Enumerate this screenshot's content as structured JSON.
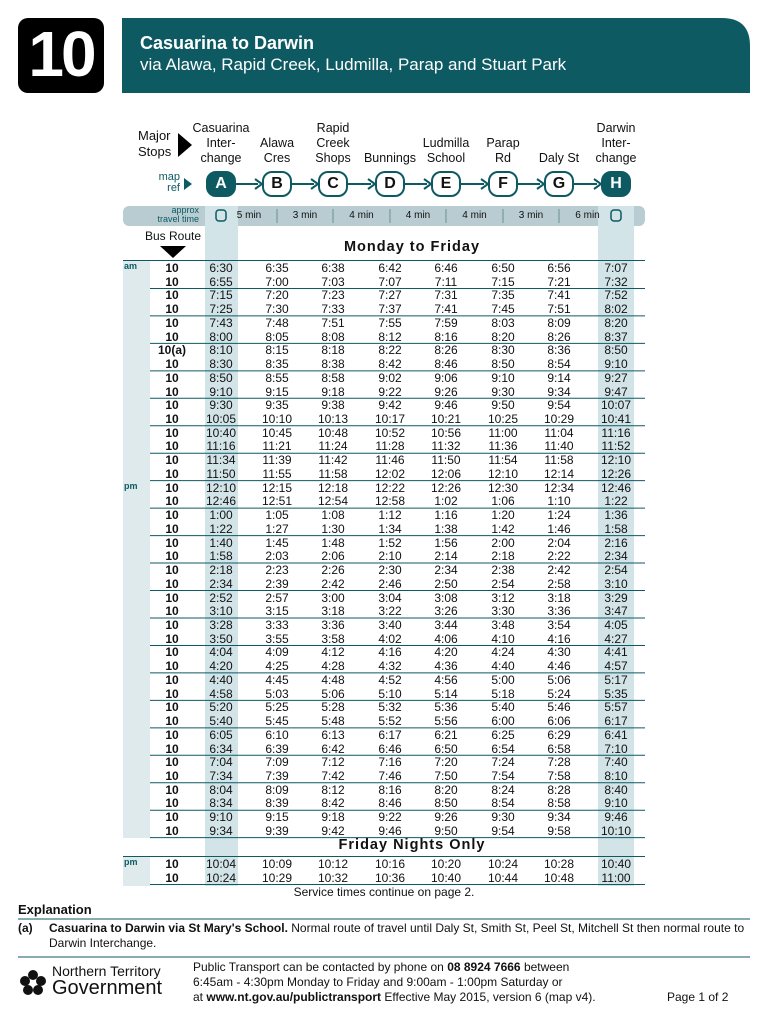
{
  "route_number": "10",
  "header": {
    "title": "Casuarina to Darwin",
    "subtitle": "via Alawa, Rapid Creek, Ludmilla, Parap and Stuart Park"
  },
  "major_stops_label": [
    "Major",
    "Stops"
  ],
  "map_ref_label": [
    "map",
    "ref"
  ],
  "travel_time_label": [
    "approx",
    "travel time"
  ],
  "bus_route_label": "Bus Route",
  "stops": [
    {
      "name": [
        "Casuarina",
        "Inter-",
        "change"
      ],
      "ref": "A"
    },
    {
      "name": [
        "Alawa",
        "Cres"
      ],
      "ref": "B"
    },
    {
      "name": [
        "Rapid",
        "Creek",
        "Shops"
      ],
      "ref": "C"
    },
    {
      "name": [
        "Bunnings"
      ],
      "ref": "D"
    },
    {
      "name": [
        "Ludmilla",
        "School"
      ],
      "ref": "E"
    },
    {
      "name": [
        "Parap",
        "Rd"
      ],
      "ref": "F"
    },
    {
      "name": [
        "Daly St"
      ],
      "ref": "G"
    },
    {
      "name": [
        "Darwin",
        "Inter-",
        "change"
      ],
      "ref": "H"
    }
  ],
  "travel_times": [
    "5 min",
    "3 min",
    "4 min",
    "4 min",
    "4 min",
    "3 min",
    "6 min"
  ],
  "sections": [
    {
      "title": "Monday to Friday",
      "rows": [
        {
          "period": "am",
          "route": "10",
          "times": [
            "6:30",
            "6:35",
            "6:38",
            "6:42",
            "6:46",
            "6:50",
            "6:56",
            "7:07"
          ]
        },
        {
          "route": "10",
          "times": [
            "6:55",
            "7:00",
            "7:03",
            "7:07",
            "7:11",
            "7:15",
            "7:21",
            "7:32"
          ]
        },
        {
          "route": "10",
          "times": [
            "7:15",
            "7:20",
            "7:23",
            "7:27",
            "7:31",
            "7:35",
            "7:41",
            "7:52"
          ]
        },
        {
          "route": "10",
          "times": [
            "7:25",
            "7:30",
            "7:33",
            "7:37",
            "7:41",
            "7:45",
            "7:51",
            "8:02"
          ]
        },
        {
          "route": "10",
          "times": [
            "7:43",
            "7:48",
            "7:51",
            "7:55",
            "7:59",
            "8:03",
            "8:09",
            "8:20"
          ]
        },
        {
          "route": "10",
          "times": [
            "8:00",
            "8:05",
            "8:08",
            "8:12",
            "8:16",
            "8:20",
            "8:26",
            "8:37"
          ]
        },
        {
          "route": "10(a)",
          "times": [
            "8:10",
            "8:15",
            "8:18",
            "8:22",
            "8:26",
            "8:30",
            "8:36",
            "8:50"
          ]
        },
        {
          "route": "10",
          "times": [
            "8:30",
            "8:35",
            "8:38",
            "8:42",
            "8:46",
            "8:50",
            "8:54",
            "9:10"
          ]
        },
        {
          "route": "10",
          "times": [
            "8:50",
            "8:55",
            "8:58",
            "9:02",
            "9:06",
            "9:10",
            "9:14",
            "9:27"
          ]
        },
        {
          "route": "10",
          "times": [
            "9:10",
            "9:15",
            "9:18",
            "9:22",
            "9:26",
            "9:30",
            "9:34",
            "9:47"
          ]
        },
        {
          "route": "10",
          "times": [
            "9:30",
            "9:35",
            "9:38",
            "9:42",
            "9:46",
            "9:50",
            "9:54",
            "10:07"
          ]
        },
        {
          "route": "10",
          "times": [
            "10:05",
            "10:10",
            "10:13",
            "10:17",
            "10:21",
            "10:25",
            "10:29",
            "10:41"
          ]
        },
        {
          "route": "10",
          "times": [
            "10:40",
            "10:45",
            "10:48",
            "10:52",
            "10:56",
            "11:00",
            "11:04",
            "11:16"
          ]
        },
        {
          "route": "10",
          "times": [
            "11:16",
            "11:21",
            "11:24",
            "11:28",
            "11:32",
            "11:36",
            "11:40",
            "11:52"
          ]
        },
        {
          "route": "10",
          "times": [
            "11:34",
            "11:39",
            "11:42",
            "11:46",
            "11:50",
            "11:54",
            "11:58",
            "12:10"
          ]
        },
        {
          "route": "10",
          "times": [
            "11:50",
            "11:55",
            "11:58",
            "12:02",
            "12:06",
            "12:10",
            "12:14",
            "12:26"
          ]
        },
        {
          "period": "pm",
          "route": "10",
          "times": [
            "12:10",
            "12:15",
            "12:18",
            "12:22",
            "12:26",
            "12:30",
            "12:34",
            "12:46"
          ]
        },
        {
          "route": "10",
          "times": [
            "12:46",
            "12:51",
            "12:54",
            "12:58",
            "1:02",
            "1:06",
            "1:10",
            "1:22"
          ]
        },
        {
          "route": "10",
          "times": [
            "1:00",
            "1:05",
            "1:08",
            "1:12",
            "1:16",
            "1:20",
            "1:24",
            "1:36"
          ]
        },
        {
          "route": "10",
          "times": [
            "1:22",
            "1:27",
            "1:30",
            "1:34",
            "1:38",
            "1:42",
            "1:46",
            "1:58"
          ]
        },
        {
          "route": "10",
          "times": [
            "1:40",
            "1:45",
            "1:48",
            "1:52",
            "1:56",
            "2:00",
            "2:04",
            "2:16"
          ]
        },
        {
          "route": "10",
          "times": [
            "1:58",
            "2:03",
            "2:06",
            "2:10",
            "2:14",
            "2:18",
            "2:22",
            "2:34"
          ]
        },
        {
          "route": "10",
          "times": [
            "2:18",
            "2:23",
            "2:26",
            "2:30",
            "2:34",
            "2:38",
            "2:42",
            "2:54"
          ]
        },
        {
          "route": "10",
          "times": [
            "2:34",
            "2:39",
            "2:42",
            "2:46",
            "2:50",
            "2:54",
            "2:58",
            "3:10"
          ]
        },
        {
          "route": "10",
          "times": [
            "2:52",
            "2:57",
            "3:00",
            "3:04",
            "3:08",
            "3:12",
            "3:18",
            "3:29"
          ]
        },
        {
          "route": "10",
          "times": [
            "3:10",
            "3:15",
            "3:18",
            "3:22",
            "3:26",
            "3:30",
            "3:36",
            "3:47"
          ]
        },
        {
          "route": "10",
          "times": [
            "3:28",
            "3:33",
            "3:36",
            "3:40",
            "3:44",
            "3:48",
            "3:54",
            "4:05"
          ]
        },
        {
          "route": "10",
          "times": [
            "3:50",
            "3:55",
            "3:58",
            "4:02",
            "4:06",
            "4:10",
            "4:16",
            "4:27"
          ]
        },
        {
          "route": "10",
          "times": [
            "4:04",
            "4:09",
            "4:12",
            "4:16",
            "4:20",
            "4:24",
            "4:30",
            "4:41"
          ]
        },
        {
          "route": "10",
          "times": [
            "4:20",
            "4:25",
            "4:28",
            "4:32",
            "4:36",
            "4:40",
            "4:46",
            "4:57"
          ]
        },
        {
          "route": "10",
          "times": [
            "4:40",
            "4:45",
            "4:48",
            "4:52",
            "4:56",
            "5:00",
            "5:06",
            "5:17"
          ]
        },
        {
          "route": "10",
          "times": [
            "4:58",
            "5:03",
            "5:06",
            "5:10",
            "5:14",
            "5:18",
            "5:24",
            "5:35"
          ]
        },
        {
          "route": "10",
          "times": [
            "5:20",
            "5:25",
            "5:28",
            "5:32",
            "5:36",
            "5:40",
            "5:46",
            "5:57"
          ]
        },
        {
          "route": "10",
          "times": [
            "5:40",
            "5:45",
            "5:48",
            "5:52",
            "5:56",
            "6:00",
            "6:06",
            "6:17"
          ]
        },
        {
          "route": "10",
          "times": [
            "6:05",
            "6:10",
            "6:13",
            "6:17",
            "6:21",
            "6:25",
            "6:29",
            "6:41"
          ]
        },
        {
          "route": "10",
          "times": [
            "6:34",
            "6:39",
            "6:42",
            "6:46",
            "6:50",
            "6:54",
            "6:58",
            "7:10"
          ]
        },
        {
          "route": "10",
          "times": [
            "7:04",
            "7:09",
            "7:12",
            "7:16",
            "7:20",
            "7:24",
            "7:28",
            "7:40"
          ]
        },
        {
          "route": "10",
          "times": [
            "7:34",
            "7:39",
            "7:42",
            "7:46",
            "7:50",
            "7:54",
            "7:58",
            "8:10"
          ]
        },
        {
          "route": "10",
          "times": [
            "8:04",
            "8:09",
            "8:12",
            "8:16",
            "8:20",
            "8:24",
            "8:28",
            "8:40"
          ]
        },
        {
          "route": "10",
          "times": [
            "8:34",
            "8:39",
            "8:42",
            "8:46",
            "8:50",
            "8:54",
            "8:58",
            "9:10"
          ]
        },
        {
          "route": "10",
          "times": [
            "9:10",
            "9:15",
            "9:18",
            "9:22",
            "9:26",
            "9:30",
            "9:34",
            "9:46"
          ]
        },
        {
          "route": "10",
          "times": [
            "9:34",
            "9:39",
            "9:42",
            "9:46",
            "9:50",
            "9:54",
            "9:58",
            "10:10"
          ]
        }
      ]
    },
    {
      "title": "Friday Nights Only",
      "rows": [
        {
          "period": "pm",
          "route": "10",
          "times": [
            "10:04",
            "10:09",
            "10:12",
            "10:16",
            "10:20",
            "10:24",
            "10:28",
            "10:40"
          ]
        },
        {
          "route": "10",
          "times": [
            "10:24",
            "10:29",
            "10:32",
            "10:36",
            "10:40",
            "10:44",
            "10:48",
            "11:00"
          ]
        }
      ]
    }
  ],
  "continue_note": "Service times continue on page 2.",
  "explanation": {
    "title": "Explanation",
    "key": "(a)",
    "bold": "Casuarina to Darwin via St Mary's School.",
    "text": "Normal route of travel until Daly St, Smith St, Peel St, Mitchell St then normal route to Darwin Interchange."
  },
  "footer": {
    "logo": [
      "Northern Territory",
      "Government"
    ],
    "contact_1": "Public Transport can be contacted by phone on",
    "phone": "08 8924 7666",
    "contact_2": "between",
    "hours": "6:45am - 4:30pm Monday to Friday and 9:00am - 1:00pm Saturday or",
    "at": "at",
    "website": "www.nt.gov.au/publictransport",
    "effective": "Effective May 2015, version 6 (map v4).",
    "page": "Page 1 of 2"
  }
}
